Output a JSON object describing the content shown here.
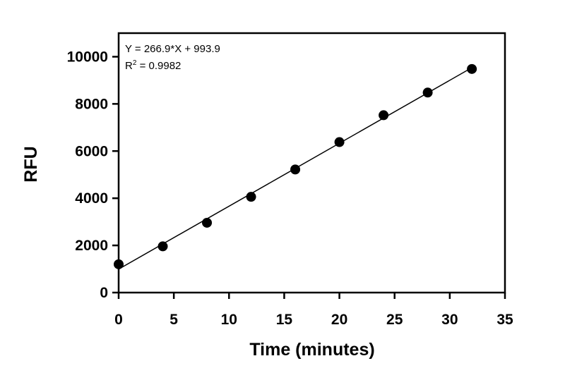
{
  "chart_data": {
    "type": "scatter",
    "xlabel": "Time (minutes)",
    "ylabel": "RFU",
    "xlim": [
      0,
      35
    ],
    "ylim": [
      0,
      11000
    ],
    "x_ticks": [
      0,
      5,
      10,
      15,
      20,
      25,
      30,
      35
    ],
    "y_ticks": [
      0,
      2000,
      4000,
      6000,
      8000,
      10000
    ],
    "grid": false,
    "series": [
      {
        "x": [
          0,
          4,
          8,
          12,
          16,
          20,
          24,
          28,
          32
        ],
        "y": [
          1200,
          1960,
          2960,
          4060,
          5220,
          6380,
          7520,
          8480,
          9480
        ],
        "marker_color": "#000000"
      }
    ],
    "fit_line": {
      "slope": 266.9,
      "intercept": 993.9,
      "x_range": [
        0,
        32
      ],
      "color": "#000000"
    },
    "annotations": {
      "equation": "Y = 266.9*X + 993.9",
      "r2_prefix": "R",
      "r2_sup": "2",
      "r2_value": " = 0.9982"
    }
  }
}
